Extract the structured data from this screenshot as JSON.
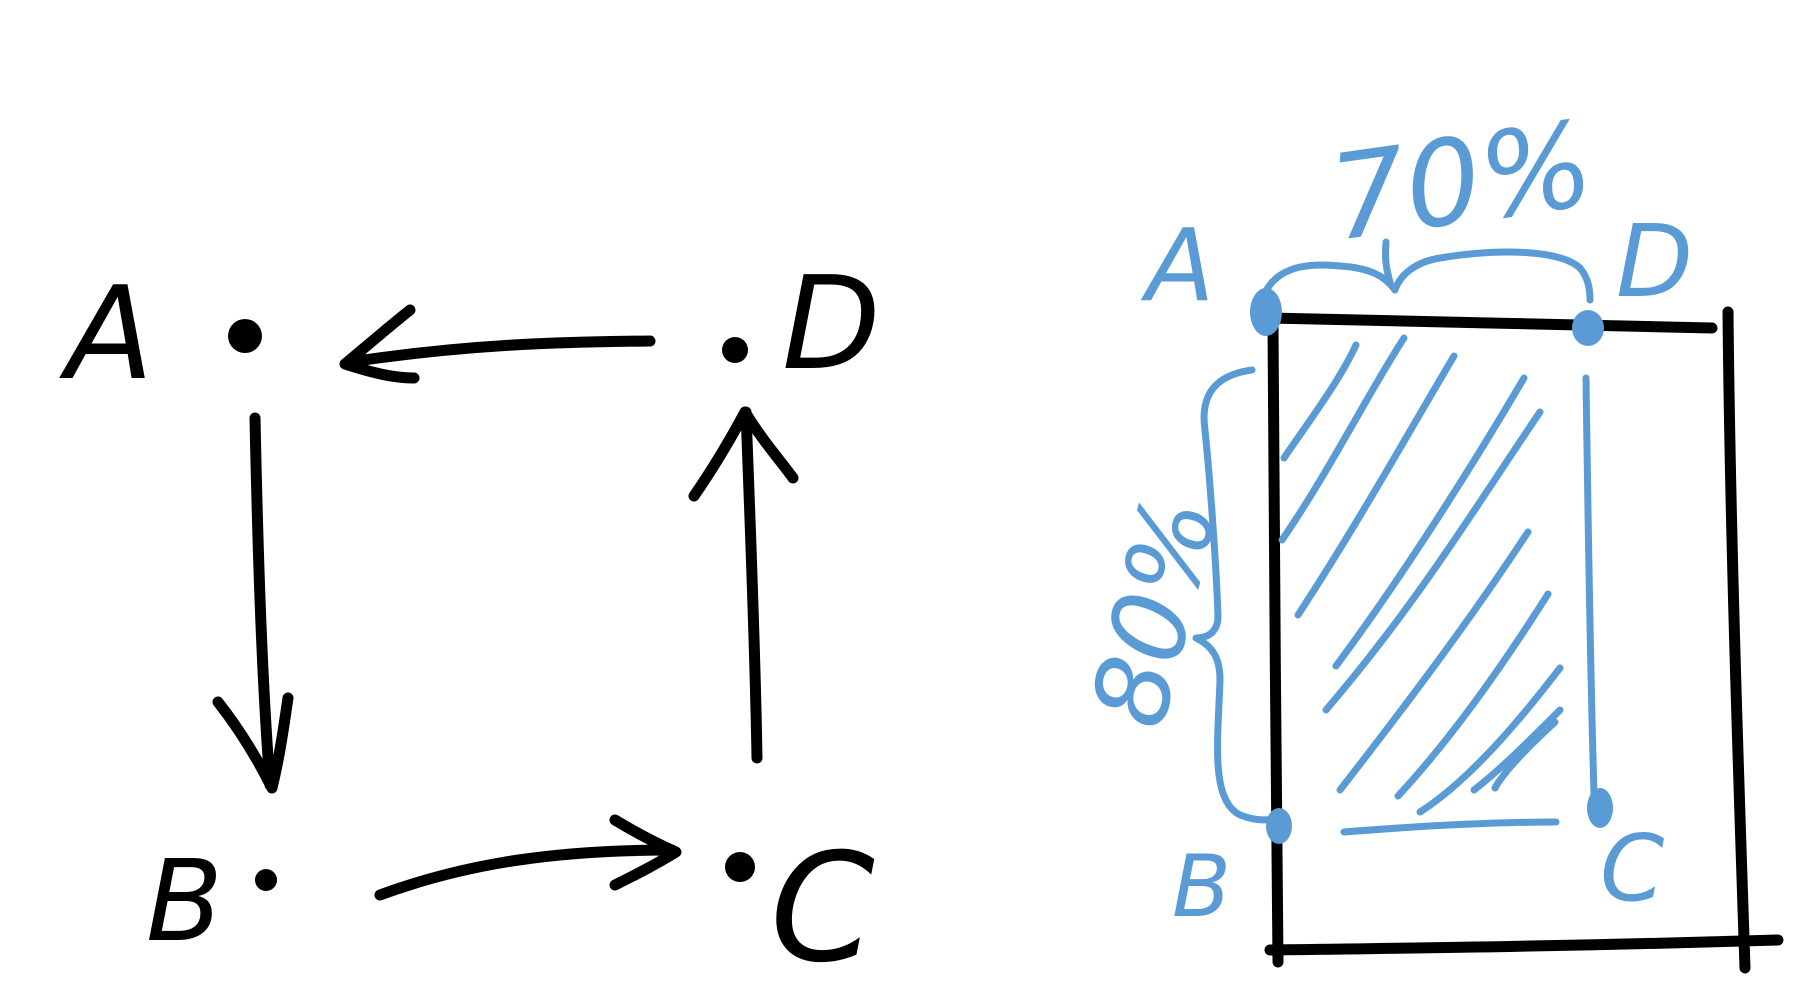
{
  "colors": {
    "ink": "#000000",
    "highlight": "#5b9bd5",
    "background": "#ffffff"
  },
  "left_diagram": {
    "points": {
      "a": "A",
      "b": "B",
      "c": "C",
      "d": "D"
    },
    "edges": [
      {
        "from": "A",
        "to": "B"
      },
      {
        "from": "B",
        "to": "C"
      },
      {
        "from": "C",
        "to": "D"
      },
      {
        "from": "D",
        "to": "A"
      }
    ]
  },
  "right_diagram": {
    "points": {
      "a": "A",
      "b": "B",
      "c": "C",
      "d": "D"
    },
    "width_label": "70%",
    "height_label": "80%"
  }
}
